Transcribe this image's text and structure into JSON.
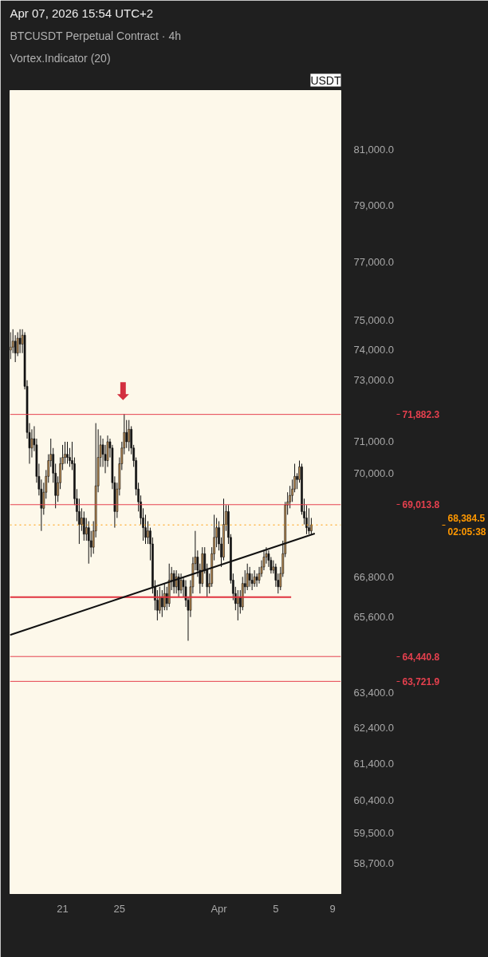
{
  "chart_data": {
    "type": "candlestick",
    "title": "BTCUSDT Perpetual Contract · 4h",
    "subtitle": "Vortex.Indicator (20)",
    "annotations": [
      "Apr 07, 2026 15:54 UTC+2",
      "USDT",
      "⬇"
    ],
    "colors": [
      "#b8894f",
      "#b8894f",
      "#111111",
      "#b8894f",
      "#111111",
      "#b8894f",
      "#111111",
      "#111111",
      "#111111",
      "#b8894f",
      "#111111",
      "#111111",
      "#111111",
      "#111111",
      "#b8894f",
      "#b8894f",
      "#b8894f",
      "#b8894f",
      "#111111",
      "#111111",
      "#b8894f",
      "#b8894f",
      "#b8894f",
      "#b8894f",
      "#111111",
      "#111111",
      "#111111",
      "#111111",
      "#111111",
      "#111111",
      "#b8894f",
      "#111111",
      "#b8894f",
      "#111111",
      "#111111",
      "#b8894f",
      "#b8894f",
      "#b8894f",
      "#b8894f",
      "#111111",
      "#111111",
      "#b8894f",
      "#111111",
      "#111111",
      "#111111",
      "#b8894f",
      "#b8894f",
      "#b8894f",
      "#b8894f",
      "#111111",
      "#b8894f",
      "#111111",
      "#111111",
      "#111111",
      "#111111",
      "#111111",
      "#111111",
      "#111111",
      "#b8894f",
      "#111111",
      "#111111",
      "#111111",
      "#111111",
      "#b8894f",
      "#111111",
      "#b8894f",
      "#111111",
      "#b8894f",
      "#b8894f",
      "#111111",
      "#b8894f",
      "#111111",
      "#b8894f",
      "#111111",
      "#111111",
      "#111111",
      "#b8894f",
      "#b8894f",
      "#b8894f",
      "#111111",
      "#111111",
      "#b8894f",
      "#111111",
      "#111111",
      "#b8894f",
      "#b8894f",
      "#b8894f",
      "#b8894f",
      "#111111",
      "#111111",
      "#b8894f",
      "#b8894f",
      "#111111",
      "#111111",
      "#111111",
      "#111111",
      "#b8894f",
      "#111111",
      "#b8894f",
      "#111111",
      "#b8894f",
      "#111111",
      "#111111",
      "#b8894f",
      "#111111",
      "#b8894f",
      "#b8894f",
      "#b8894f",
      "#b8894f",
      "#111111",
      "#111111",
      "#b8894f",
      "#111111",
      "#111111",
      "#b8894f",
      "#b8894f",
      "#b8894f",
      "#b8894f",
      "#b8894f",
      "#b8894f",
      "#b8894f",
      "#111111",
      "#b8894f",
      "#111111",
      "#111111",
      "#111111",
      "#111111",
      "#b8894f"
    ],
    "x": [
      "2026-03-17T08:00",
      "2026-03-17T12:00",
      "2026-03-17T16:00",
      "2026-03-17T20:00",
      "2026-03-18T00:00",
      "2026-03-18T04:00",
      "2026-03-18T08:00",
      "2026-03-18T12:00",
      "2026-03-18T16:00",
      "2026-03-18T20:00",
      "2026-03-19T00:00",
      "2026-03-19T04:00",
      "2026-03-19T08:00",
      "2026-03-19T12:00",
      "2026-03-19T16:00",
      "2026-03-19T20:00",
      "2026-03-20T00:00",
      "2026-03-20T04:00",
      "2026-03-20T08:00",
      "2026-03-20T12:00",
      "2026-03-20T16:00",
      "2026-03-20T20:00",
      "2026-03-21T00:00",
      "2026-03-21T04:00",
      "2026-03-21T08:00",
      "2026-03-21T12:00",
      "2026-03-21T16:00",
      "2026-03-21T20:00",
      "2026-03-22T00:00",
      "2026-03-22T04:00",
      "2026-03-22T08:00",
      "2026-03-22T12:00",
      "2026-03-22T16:00",
      "2026-03-22T20:00",
      "2026-03-23T00:00",
      "2026-03-23T04:00",
      "2026-03-23T08:00",
      "2026-03-23T12:00",
      "2026-03-23T16:00",
      "2026-03-23T20:00",
      "2026-03-24T00:00",
      "2026-03-24T04:00",
      "2026-03-24T08:00",
      "2026-03-24T12:00",
      "2026-03-24T16:00",
      "2026-03-24T20:00",
      "2026-03-25T00:00",
      "2026-03-25T04:00",
      "2026-03-25T08:00",
      "2026-03-25T12:00",
      "2026-03-25T16:00",
      "2026-03-25T20:00",
      "2026-03-26T00:00",
      "2026-03-26T04:00",
      "2026-03-26T08:00",
      "2026-03-26T12:00",
      "2026-03-26T16:00",
      "2026-03-26T20:00",
      "2026-03-27T00:00",
      "2026-03-27T04:00",
      "2026-03-27T08:00",
      "2026-03-27T12:00",
      "2026-03-27T16:00",
      "2026-03-27T20:00",
      "2026-03-28T00:00",
      "2026-03-28T04:00",
      "2026-03-28T08:00",
      "2026-03-28T12:00",
      "2026-03-28T16:00",
      "2026-03-28T20:00",
      "2026-03-29T00:00",
      "2026-03-29T04:00",
      "2026-03-29T08:00",
      "2026-03-29T12:00",
      "2026-03-29T16:00",
      "2026-03-29T20:00",
      "2026-03-30T00:00",
      "2026-03-30T04:00",
      "2026-03-30T08:00",
      "2026-03-30T12:00",
      "2026-03-30T16:00",
      "2026-03-30T20:00",
      "2026-03-31T00:00",
      "2026-03-31T04:00",
      "2026-03-31T08:00",
      "2026-03-31T12:00",
      "2026-03-31T16:00",
      "2026-03-31T20:00",
      "2026-04-01T00:00",
      "2026-04-01T04:00",
      "2026-04-01T08:00",
      "2026-04-01T12:00",
      "2026-04-01T16:00",
      "2026-04-01T20:00",
      "2026-04-02T00:00",
      "2026-04-02T04:00",
      "2026-04-02T08:00",
      "2026-04-02T12:00",
      "2026-04-02T16:00",
      "2026-04-02T20:00",
      "2026-04-03T00:00",
      "2026-04-03T04:00",
      "2026-04-03T08:00",
      "2026-04-03T12:00",
      "2026-04-03T16:00",
      "2026-04-03T20:00",
      "2026-04-04T00:00",
      "2026-04-04T04:00",
      "2026-04-04T08:00",
      "2026-04-04T12:00",
      "2026-04-04T16:00",
      "2026-04-04T20:00",
      "2026-04-05T00:00",
      "2026-04-05T04:00",
      "2026-04-05T08:00",
      "2026-04-05T12:00",
      "2026-04-05T16:00",
      "2026-04-05T20:00",
      "2026-04-06T00:00",
      "2026-04-06T04:00",
      "2026-04-06T08:00",
      "2026-04-06T12:00",
      "2026-04-06T16:00",
      "2026-04-06T20:00",
      "2026-04-07T00:00",
      "2026-04-07T04:00",
      "2026-04-07T08:00",
      "2026-04-07T12:00"
    ],
    "ohlc": [
      [
        74000,
        74600,
        73700,
        74100
      ],
      [
        74100,
        74700,
        73900,
        74300
      ],
      [
        74300,
        74500,
        73600,
        73900
      ],
      [
        73900,
        74600,
        73800,
        74400
      ],
      [
        74400,
        74700,
        73900,
        74200
      ],
      [
        74200,
        74700,
        73900,
        74500
      ],
      [
        74500,
        74600,
        72700,
        72800
      ],
      [
        72800,
        73000,
        71100,
        71300
      ],
      [
        71300,
        71600,
        70300,
        70800
      ],
      [
        70800,
        71400,
        70500,
        71100
      ],
      [
        71100,
        71500,
        70700,
        70900
      ],
      [
        70900,
        71100,
        69700,
        69900
      ],
      [
        69900,
        70300,
        69300,
        69500
      ],
      [
        69500,
        69800,
        68200,
        68900
      ],
      [
        68900,
        69700,
        68700,
        69400
      ],
      [
        69400,
        70100,
        69200,
        69900
      ],
      [
        69900,
        70600,
        69700,
        70400
      ],
      [
        70400,
        71100,
        70200,
        70600
      ],
      [
        70600,
        70800,
        69700,
        70000
      ],
      [
        70000,
        70300,
        68900,
        69300
      ],
      [
        69300,
        69900,
        69100,
        69700
      ],
      [
        69700,
        70500,
        69500,
        70300
      ],
      [
        70300,
        70900,
        70100,
        70500
      ],
      [
        70500,
        71000,
        70300,
        70600
      ],
      [
        70600,
        71000,
        70300,
        70500
      ],
      [
        70500,
        70800,
        70200,
        70400
      ],
      [
        70400,
        71000,
        70100,
        70300
      ],
      [
        70300,
        70500,
        69000,
        69200
      ],
      [
        69200,
        69500,
        68500,
        68800
      ],
      [
        68800,
        69200,
        67800,
        68400
      ],
      [
        68400,
        68900,
        68200,
        68600
      ],
      [
        68600,
        68800,
        67900,
        68100
      ],
      [
        68100,
        68600,
        67900,
        68300
      ],
      [
        68300,
        68500,
        67200,
        67900
      ],
      [
        67900,
        68200,
        67400,
        67700
      ],
      [
        67700,
        68500,
        67500,
        68200
      ],
      [
        68200,
        71600,
        68000,
        69600
      ],
      [
        69600,
        71400,
        69400,
        70500
      ],
      [
        70500,
        71200,
        70200,
        70900
      ],
      [
        70900,
        71100,
        70200,
        70600
      ],
      [
        70600,
        70900,
        70000,
        70400
      ],
      [
        70400,
        71200,
        70200,
        71000
      ],
      [
        71000,
        71100,
        70500,
        70800
      ],
      [
        70800,
        70900,
        69500,
        69700
      ],
      [
        69700,
        69900,
        68300,
        68800
      ],
      [
        68800,
        69700,
        68600,
        69500
      ],
      [
        69500,
        70500,
        69300,
        70300
      ],
      [
        70300,
        71000,
        70100,
        70800
      ],
      [
        70800,
        71900,
        70600,
        71300
      ],
      [
        71300,
        71700,
        70800,
        71000
      ],
      [
        71000,
        71700,
        70700,
        71400
      ],
      [
        71400,
        71500,
        70600,
        70800
      ],
      [
        70800,
        70900,
        70200,
        70400
      ],
      [
        70400,
        70500,
        69300,
        69500
      ],
      [
        69500,
        69700,
        68800,
        69100
      ],
      [
        69100,
        69300,
        68400,
        68600
      ],
      [
        68600,
        68900,
        67900,
        68300
      ],
      [
        68300,
        68700,
        67800,
        68000
      ],
      [
        68000,
        68500,
        67800,
        68200
      ],
      [
        68200,
        68300,
        67300,
        67800
      ],
      [
        67800,
        68000,
        66300,
        66500
      ],
      [
        66500,
        66700,
        65800,
        66100
      ],
      [
        66100,
        66400,
        65500,
        65800
      ],
      [
        65800,
        66500,
        65700,
        66200
      ],
      [
        66200,
        66400,
        65600,
        65900
      ],
      [
        65900,
        66600,
        65800,
        66300
      ],
      [
        66300,
        66500,
        65800,
        66000
      ],
      [
        66000,
        67200,
        65900,
        66700
      ],
      [
        66700,
        67100,
        66400,
        66900
      ],
      [
        66900,
        67000,
        66300,
        66500
      ],
      [
        66500,
        67000,
        66300,
        66800
      ],
      [
        66800,
        66900,
        66200,
        66400
      ],
      [
        66400,
        66900,
        66300,
        66700
      ],
      [
        66700,
        66800,
        66200,
        66500
      ],
      [
        66500,
        66700,
        65900,
        66100
      ],
      [
        66100,
        66200,
        64900,
        65800
      ],
      [
        65800,
        66700,
        65600,
        66500
      ],
      [
        66500,
        67400,
        66300,
        67200
      ],
      [
        67200,
        68200,
        67000,
        67400
      ],
      [
        67400,
        67600,
        66800,
        67000
      ],
      [
        67000,
        67200,
        66300,
        66600
      ],
      [
        66600,
        67700,
        66500,
        67500
      ],
      [
        67500,
        67700,
        66900,
        67000
      ],
      [
        67000,
        67200,
        66200,
        66500
      ],
      [
        66500,
        66900,
        66300,
        66600
      ],
      [
        66600,
        67700,
        66500,
        67500
      ],
      [
        67500,
        68700,
        67300,
        68000
      ],
      [
        68000,
        68600,
        67700,
        68300
      ],
      [
        68300,
        68500,
        67600,
        67800
      ],
      [
        67800,
        68000,
        67100,
        67400
      ],
      [
        67400,
        69200,
        67300,
        68400
      ],
      [
        68400,
        69000,
        68200,
        68800
      ],
      [
        68800,
        69000,
        67800,
        68000
      ],
      [
        68000,
        68100,
        66600,
        66700
      ],
      [
        66700,
        66900,
        66100,
        66300
      ],
      [
        66300,
        66500,
        65800,
        66000
      ],
      [
        66000,
        66400,
        65500,
        66200
      ],
      [
        66200,
        66400,
        65700,
        65900
      ],
      [
        65900,
        66800,
        65800,
        66600
      ],
      [
        66600,
        67000,
        66300,
        66500
      ],
      [
        66500,
        67200,
        66400,
        66900
      ],
      [
        66900,
        67100,
        66500,
        66700
      ],
      [
        66700,
        66900,
        66400,
        66600
      ],
      [
        66600,
        67000,
        66500,
        66800
      ],
      [
        66800,
        66900,
        66500,
        66700
      ],
      [
        66700,
        67100,
        66600,
        66900
      ],
      [
        66900,
        67300,
        66800,
        67100
      ],
      [
        67100,
        67600,
        67000,
        67400
      ],
      [
        67400,
        67700,
        67200,
        67500
      ],
      [
        67500,
        67600,
        67100,
        67300
      ],
      [
        67300,
        67400,
        66900,
        67000
      ],
      [
        67000,
        67300,
        66900,
        67100
      ],
      [
        67100,
        67200,
        66500,
        66700
      ],
      [
        66700,
        66900,
        66300,
        66500
      ],
      [
        66500,
        67100,
        66400,
        66900
      ],
      [
        66900,
        67900,
        66800,
        67500
      ],
      [
        67500,
        69100,
        67400,
        69000
      ],
      [
        69000,
        69400,
        68700,
        69100
      ],
      [
        69100,
        69600,
        68900,
        69300
      ],
      [
        69300,
        69800,
        69100,
        69500
      ],
      [
        69500,
        70300,
        69400,
        69900
      ],
      [
        69900,
        70000,
        69500,
        69800
      ],
      [
        69800,
        70400,
        69700,
        70200
      ],
      [
        70200,
        70300,
        68700,
        68800
      ],
      [
        68800,
        69200,
        68400,
        68600
      ],
      [
        68600,
        69000,
        68100,
        68300
      ],
      [
        68300,
        68900,
        68100,
        68200
      ],
      [
        68200,
        68600,
        68100,
        68384.5
      ]
    ],
    "series": [
      {
        "type": "line",
        "color": "#e0333f",
        "x": [
          "2026-03-17T07:00",
          "2026-04-06T02:00"
        ],
        "values": [
          66190,
          66190
        ]
      },
      {
        "type": "line",
        "color": "#111111",
        "x": [
          "2026-03-17T07:00",
          "2026-04-07T18:00"
        ],
        "values": [
          65070,
          68120
        ]
      }
    ],
    "ref_lines": [
      {
        "axis": "y",
        "value": 71882.3,
        "label": "71,882.3",
        "color": "#e5404e"
      },
      {
        "axis": "y",
        "value": 69013.8,
        "label": "69,013.8",
        "color": "#e5404e"
      },
      {
        "axis": "y",
        "value": 68384.5,
        "label": "68,384.5\n02:05:38",
        "color": "#ff9800",
        "line_style": "dotted"
      },
      {
        "axis": "y",
        "value": 64440.8,
        "label": "64,440.8",
        "color": "#e5404e"
      },
      {
        "axis": "y",
        "value": 63721.9,
        "label": "63,721.9",
        "color": "#e5404e"
      }
    ],
    "log": true,
    "xlim": [
      "2026-03-17T07:00",
      "2026-04-09T14:00"
    ],
    "xticks": [
      {
        "value": "2026-03-21",
        "label": "21"
      },
      {
        "value": "2026-03-25",
        "label": "25"
      },
      {
        "value": "2026-04-01",
        "label": "Apr"
      },
      {
        "value": "2026-04-05",
        "label": "5"
      },
      {
        "value": "2026-04-09",
        "label": "9"
      }
    ],
    "ylim": [
      57900,
      83200
    ],
    "yticks": [
      {
        "value": 58700,
        "label": "58,700.0"
      },
      {
        "value": 59500,
        "label": "59,500.0"
      },
      {
        "value": 60400,
        "label": "60,400.0"
      },
      {
        "value": 61400,
        "label": "61,400.0"
      },
      {
        "value": 62400,
        "label": "62,400.0"
      },
      {
        "value": 63400,
        "label": "63,400.0"
      },
      {
        "value": 65600,
        "label": "65,600.0"
      },
      {
        "value": 66800,
        "label": "66,800.0"
      },
      {
        "value": 70000,
        "label": "70,000.0"
      },
      {
        "value": 71000,
        "label": "71,000.0"
      },
      {
        "value": 73000,
        "label": "73,000.0"
      },
      {
        "value": 74000,
        "label": "74,000.0"
      },
      {
        "value": 75000,
        "label": "75,000.0"
      },
      {
        "value": 77000,
        "label": "77,000.0"
      },
      {
        "value": 79000,
        "label": "79,000.0"
      },
      {
        "value": 81000,
        "label": "81,000.0"
      }
    ]
  }
}
